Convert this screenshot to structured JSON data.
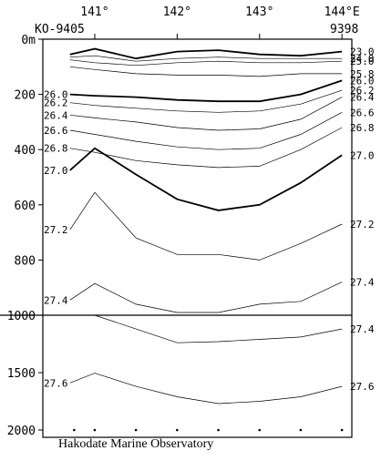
{
  "chart_data": {
    "type": "line",
    "title": "",
    "xlabel": "",
    "ylabel": "",
    "x_ticks": [
      "141°",
      "142°",
      "143°",
      "144°E"
    ],
    "x_tick_values": [
      141,
      142,
      143,
      144
    ],
    "xlim": [
      140.37,
      144.12
    ],
    "station_left": "KO-9405",
    "station_right": "9398",
    "station_x": [
      140.75,
      141.0,
      141.5,
      142.0,
      142.5,
      143.0,
      143.5,
      144.0
    ],
    "y_ticks_upper": [
      "0m",
      "200",
      "400",
      "600",
      "800",
      "1000"
    ],
    "y_tick_values_upper": [
      0,
      200,
      400,
      600,
      800,
      1000
    ],
    "y_ticks_lower": [
      "1500",
      "2000"
    ],
    "y_tick_values_lower": [
      1500,
      2000
    ],
    "depth_break": 1000,
    "ylim": [
      2000,
      0
    ],
    "x": [
      140.7,
      141.0,
      141.5,
      142.0,
      142.5,
      143.0,
      143.5,
      144.0
    ],
    "series": [
      {
        "name": "23.0",
        "values": [
          55,
          35,
          70,
          45,
          40,
          55,
          60,
          45
        ]
      },
      {
        "name": "24.0",
        "values": [
          65,
          60,
          80,
          70,
          65,
          70,
          70,
          70
        ]
      },
      {
        "name": "25.0",
        "values": [
          75,
          85,
          95,
          85,
          80,
          85,
          85,
          80
        ]
      },
      {
        "name": "25.8",
        "values": [
          100,
          110,
          125,
          130,
          130,
          135,
          125,
          125
        ]
      },
      {
        "name": "26.0",
        "values": [
          200,
          205,
          210,
          220,
          225,
          225,
          200,
          150
        ]
      },
      {
        "name": "26.2",
        "values": [
          230,
          240,
          250,
          260,
          265,
          260,
          235,
          185
        ]
      },
      {
        "name": "26.4",
        "values": [
          275,
          285,
          300,
          320,
          330,
          325,
          290,
          210
        ]
      },
      {
        "name": "26.6",
        "values": [
          330,
          345,
          370,
          390,
          400,
          395,
          345,
          265
        ]
      },
      {
        "name": "26.8",
        "values": [
          395,
          410,
          440,
          455,
          465,
          460,
          400,
          320
        ]
      },
      {
        "name": "27.0",
        "values": [
          475,
          395,
          490,
          580,
          620,
          600,
          520,
          420
        ]
      },
      {
        "name": "27.2",
        "values": [
          690,
          555,
          720,
          780,
          780,
          800,
          740,
          670
        ]
      },
      {
        "name": "27.4",
        "values": [
          945,
          885,
          960,
          990,
          990,
          960,
          950,
          880
        ]
      },
      {
        "name": "27.4",
        "values": [
          null,
          1000,
          1120,
          1240,
          1230,
          1210,
          1190,
          1120
        ]
      },
      {
        "name": "27.6",
        "values": [
          1590,
          1505,
          1620,
          1710,
          1770,
          1750,
          1710,
          1620
        ]
      }
    ],
    "left_labels": [
      "26.0",
      "26.2",
      "26.4",
      "26.6",
      "26.8",
      "27.0",
      "27.2",
      "27.4",
      "27.6"
    ],
    "right_labels": [
      "23.0",
      "24.0",
      "25.0",
      "25.8",
      "26.0",
      "26.2",
      "26.4",
      "26.6",
      "26.8",
      "27.0",
      "27.2",
      "27.4",
      "27.6"
    ],
    "bold_contours": [
      "23.0",
      "26.0",
      "27.0"
    ],
    "grid": false
  },
  "footer": {
    "credit": "Hakodate Marine Observatory"
  }
}
